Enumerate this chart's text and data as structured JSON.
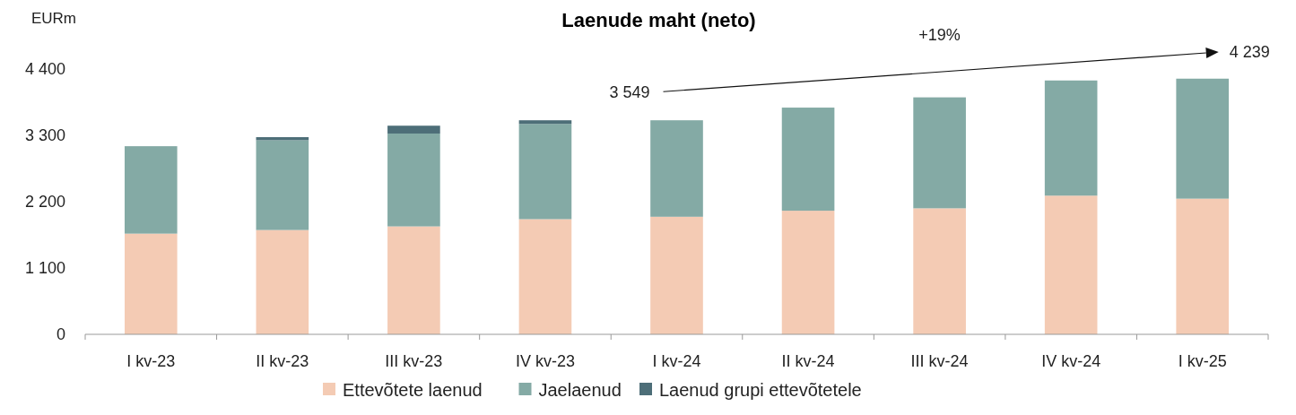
{
  "chart_data": {
    "type": "bar",
    "title": "Laenude maht (neto)",
    "ylabel": "EURm",
    "stacked": true,
    "categories": [
      "I kv-23",
      "II kv-23",
      "III kv-23",
      "IV kv-23",
      "I kv-24",
      "II kv-24",
      "III kv-24",
      "IV kv-24",
      "I kv-25"
    ],
    "series": [
      {
        "name": "Ettevõtete laenud",
        "color": "#f4cbb4",
        "values": [
          1670,
          1730,
          1790,
          1910,
          1950,
          2050,
          2090,
          2300,
          2250
        ]
      },
      {
        "name": "Jaelaenud",
        "color": "#84aaa5",
        "values": [
          1450,
          1490,
          1540,
          1580,
          1600,
          1710,
          1840,
          1910,
          1990
        ]
      },
      {
        "name": "Laenud grupi ettevõtetele",
        "color": "#4d6e78",
        "values": [
          0,
          50,
          130,
          60,
          0,
          0,
          0,
          0,
          0
        ]
      }
    ],
    "ylim": [
      0,
      4400
    ],
    "yticks": [
      0,
      {
        "value": 1100,
        "label": "1 100"
      },
      {
        "value": 2200,
        "label": "2 200"
      },
      {
        "value": 3300,
        "label": "3 300"
      },
      {
        "value": 4400,
        "label": "4 400"
      }
    ],
    "grid": false,
    "legend": "bottom",
    "annotations": [
      {
        "text": "3 549",
        "x": "I kv-24",
        "y": 3549
      },
      {
        "text": "4 239",
        "x": "I kv-25",
        "y": 4239
      },
      "+19%"
    ]
  }
}
